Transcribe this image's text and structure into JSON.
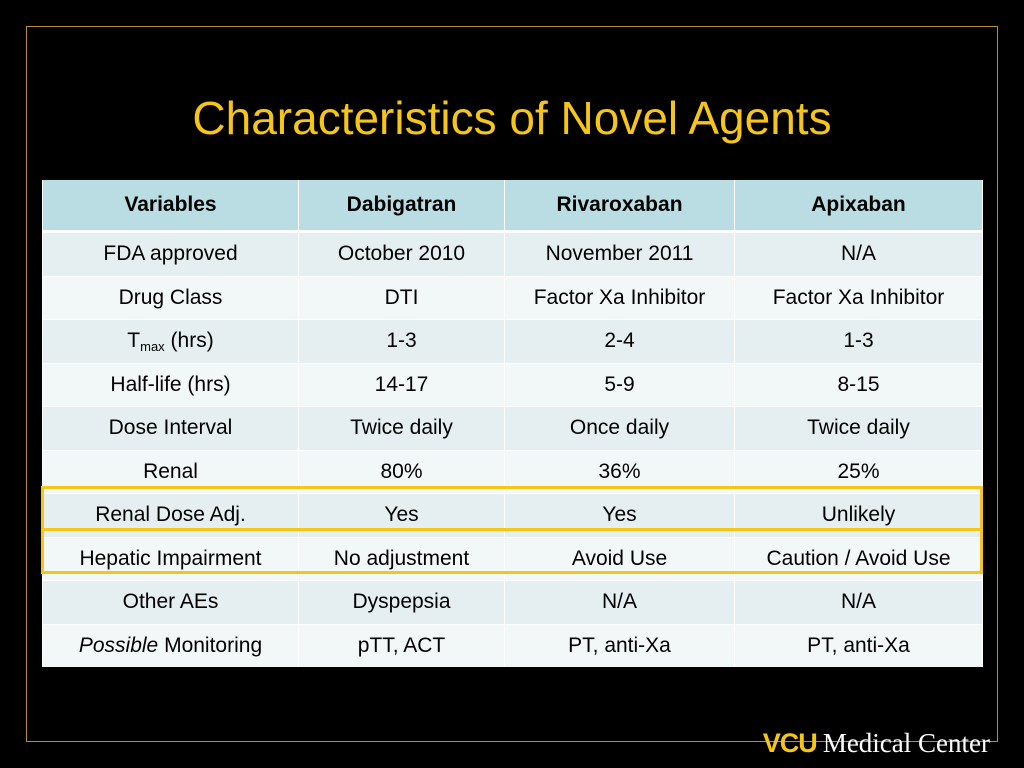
{
  "slide": {
    "title": "Characteristics of Novel Agents"
  },
  "table": {
    "headers": [
      "Variables",
      "Dabigatran",
      "Rivaroxaban",
      "Apixaban"
    ],
    "rows": [
      {
        "label": "FDA approved",
        "cells": [
          "October 2010",
          "November 2011",
          "N/A"
        ]
      },
      {
        "label": "Drug Class",
        "cells": [
          "DTI",
          "Factor Xa Inhibitor",
          "Factor Xa Inhibitor"
        ]
      },
      {
        "label_main": "T",
        "label_sub": "max",
        "label_rest": " (hrs)",
        "cells": [
          "1-3",
          "2-4",
          "1-3"
        ]
      },
      {
        "label": "Half-life (hrs)",
        "cells": [
          "14-17",
          "5-9",
          "8-15"
        ]
      },
      {
        "label": "Dose Interval",
        "cells": [
          "Twice daily",
          "Once daily",
          "Twice daily"
        ]
      },
      {
        "label": "Renal",
        "cells": [
          "80%",
          "36%",
          "25%"
        ]
      },
      {
        "label": "Renal Dose Adj.",
        "cells": [
          "Yes",
          "Yes",
          "Unlikely"
        ]
      },
      {
        "label": "Hepatic Impairment",
        "cells": [
          "No adjustment",
          "Avoid Use",
          "Caution / Avoid Use"
        ]
      },
      {
        "label": "Other AEs",
        "cells": [
          "Dyspepsia",
          "N/A",
          "N/A"
        ]
      },
      {
        "label_italic": "Possible",
        "label_rest": " Monitoring",
        "cells": [
          "pTT, ACT",
          "PT, anti-Xa",
          "PT, anti-Xa"
        ]
      }
    ],
    "highlight_color": "#f5c518",
    "header_color": "#b9dde2"
  },
  "footer": {
    "logo_mark": "VCU",
    "logo_text": "Medical Center"
  }
}
